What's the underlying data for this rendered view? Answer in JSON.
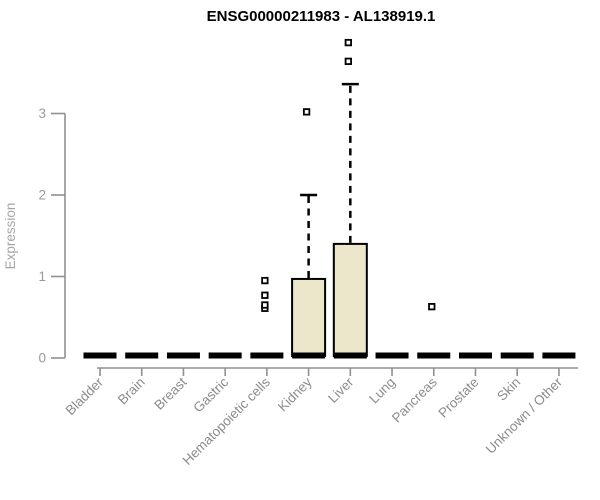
{
  "chart_data": {
    "type": "boxplot",
    "title": "ENSG00000211983 - AL138919.1",
    "ylabel": "Expression",
    "xlabel": "",
    "yticks": [
      0,
      1,
      2,
      3
    ],
    "ylim": [
      0,
      3.95
    ],
    "grid": false,
    "legend": "none",
    "categories": [
      "Bladder",
      "Brain",
      "Breast",
      "Gastric",
      "Hematopoietic cells",
      "Kidney",
      "Liver",
      "Lung",
      "Pancreas",
      "Prostate",
      "Skin",
      "Unknown / Other"
    ],
    "series": [
      {
        "name": "Bladder",
        "median": 0,
        "q1": 0,
        "q3": 0,
        "whisker_low": 0,
        "whisker_high": 0,
        "outliers": []
      },
      {
        "name": "Brain",
        "median": 0,
        "q1": 0,
        "q3": 0,
        "whisker_low": 0,
        "whisker_high": 0,
        "outliers": []
      },
      {
        "name": "Breast",
        "median": 0,
        "q1": 0,
        "q3": 0,
        "whisker_low": 0,
        "whisker_high": 0,
        "outliers": []
      },
      {
        "name": "Gastric",
        "median": 0,
        "q1": 0,
        "q3": 0,
        "whisker_low": 0,
        "whisker_high": 0,
        "outliers": []
      },
      {
        "name": "Hematopoietic cells",
        "median": 0,
        "q1": 0,
        "q3": 0,
        "whisker_low": 0,
        "whisker_high": 0,
        "outliers": [
          0.61,
          0.65,
          0.77,
          0.95
        ]
      },
      {
        "name": "Kidney",
        "median": 0,
        "q1": 0,
        "q3": 0.97,
        "whisker_low": 0,
        "whisker_high": 2.0,
        "outliers": [
          3.02
        ]
      },
      {
        "name": "Liver",
        "median": 0,
        "q1": 0,
        "q3": 1.4,
        "whisker_low": 0,
        "whisker_high": 3.36,
        "outliers": [
          3.64,
          3.87
        ]
      },
      {
        "name": "Lung",
        "median": 0,
        "q1": 0,
        "q3": 0,
        "whisker_low": 0,
        "whisker_high": 0,
        "outliers": []
      },
      {
        "name": "Pancreas",
        "median": 0,
        "q1": 0,
        "q3": 0,
        "whisker_low": 0,
        "whisker_high": 0,
        "outliers": [
          0.63
        ]
      },
      {
        "name": "Prostate",
        "median": 0,
        "q1": 0,
        "q3": 0,
        "whisker_low": 0,
        "whisker_high": 0,
        "outliers": []
      },
      {
        "name": "Skin",
        "median": 0,
        "q1": 0,
        "q3": 0,
        "whisker_low": 0,
        "whisker_high": 0,
        "outliers": []
      },
      {
        "name": "Unknown / Other",
        "median": 0,
        "q1": 0,
        "q3": 0,
        "whisker_low": 0,
        "whisker_high": 0,
        "outliers": []
      }
    ],
    "colors": {
      "box_fill": "#ECE7CB",
      "box_border": "#000000",
      "median": "#000000",
      "whisker": "#000000",
      "outlier": "#000000",
      "axis": "#909090",
      "ytick_label": "#9a9a9a",
      "category_label": "#8c8c8c",
      "title": "#000000",
      "background": "#ffffff"
    }
  }
}
